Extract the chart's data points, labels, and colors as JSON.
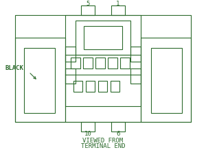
{
  "bg_color": "#ffffff",
  "line_color": "#2d6b2d",
  "text_color": "#2d6b2d",
  "title_line1": "VIEWED FROM",
  "title_line2": "TERMINAL END",
  "label_black": "BLACK",
  "pin_top_left": "5",
  "pin_top_right": "1",
  "pin_bot_left": "10",
  "pin_bot_right": "6",
  "figsize": [
    3.0,
    2.19
  ],
  "dpi": 100
}
